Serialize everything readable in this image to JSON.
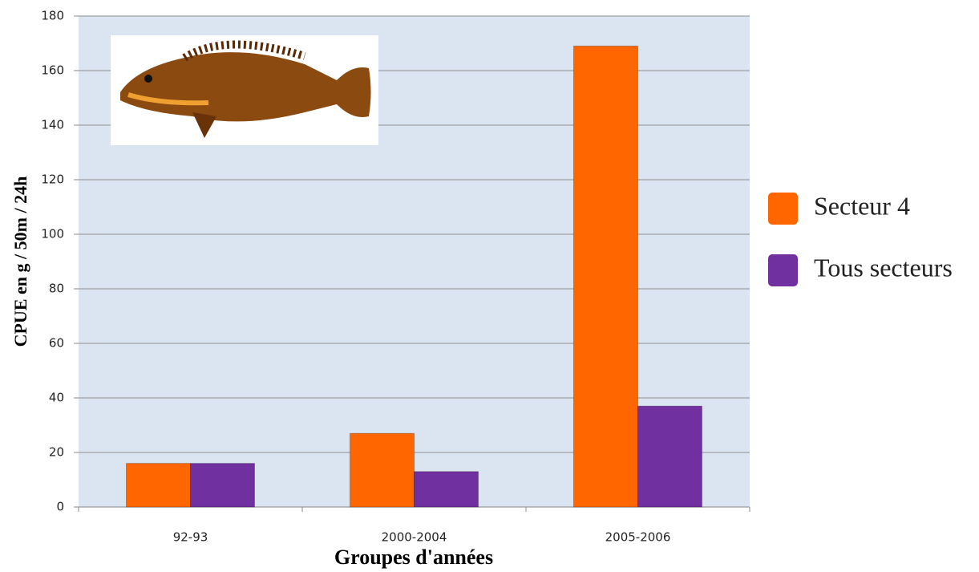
{
  "chart_data": {
    "type": "bar",
    "y_label": "CPUE en g / 50m / 24h",
    "x_label": "Groupes d'années",
    "categories": [
      "92-93",
      "2000-2004",
      "2005-2006"
    ],
    "series": [
      {
        "name": "Secteur 4",
        "color": "#ff6600",
        "values": [
          16,
          27,
          169
        ]
      },
      {
        "name": "Tous secteurs",
        "color": "#7030a0",
        "values": [
          16,
          13,
          37
        ]
      }
    ],
    "ylim": [
      0,
      180
    ],
    "yticks": [
      0,
      20,
      40,
      60,
      80,
      100,
      120,
      140,
      160,
      180
    ],
    "grid": true,
    "legend": "right"
  }
}
